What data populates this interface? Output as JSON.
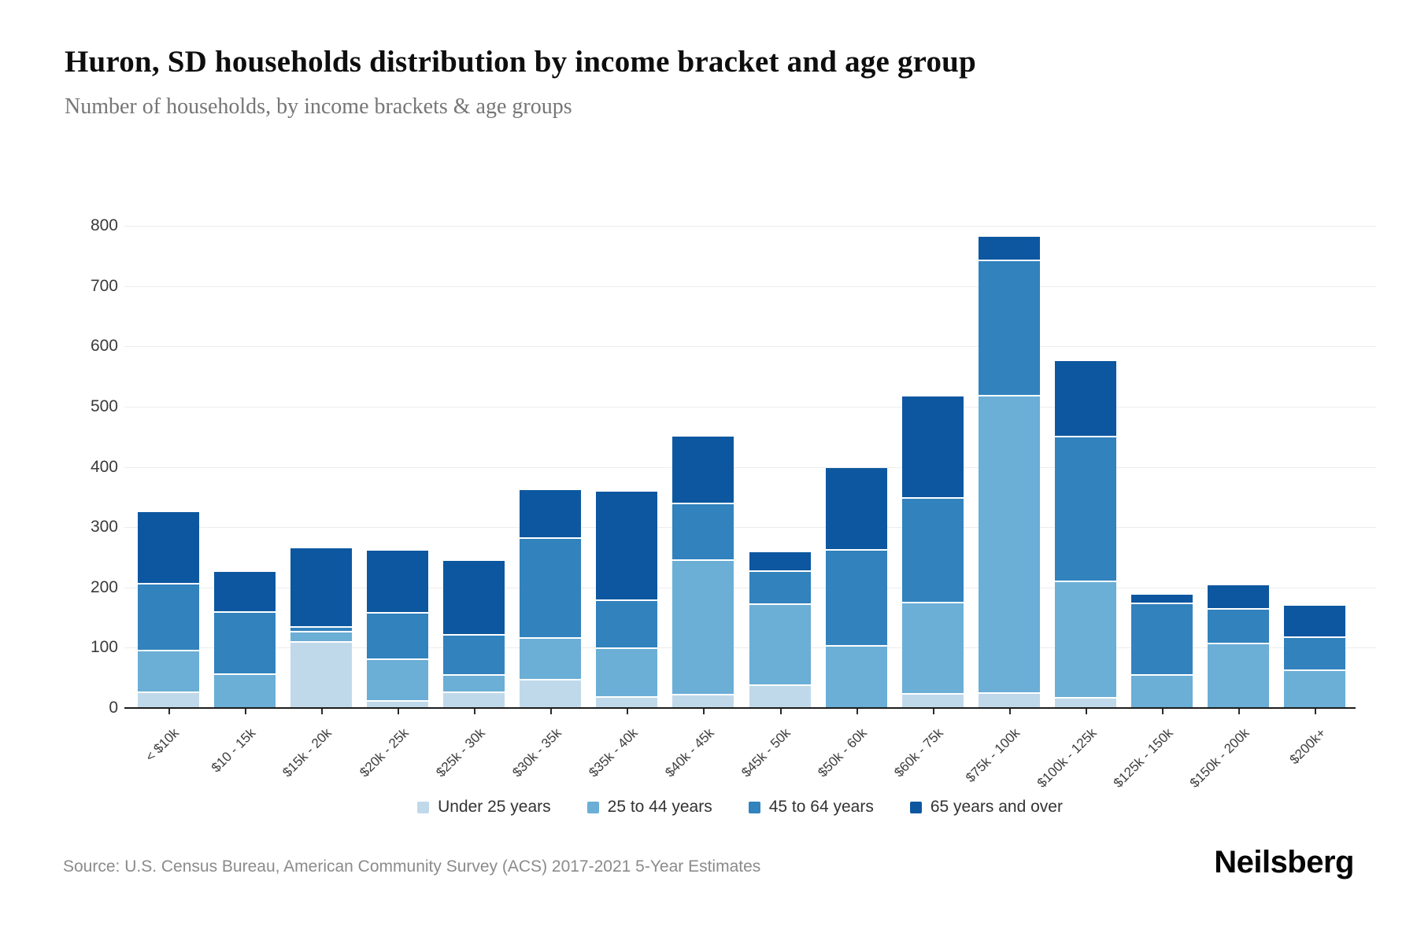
{
  "header": {
    "title": "Huron, SD households distribution by income bracket and age group",
    "subtitle": "Number of households, by income brackets & age groups"
  },
  "chart_data": {
    "type": "bar",
    "stacked": true,
    "grid": true,
    "legend_position": "bottom",
    "ylim": [
      0,
      800
    ],
    "ytick_interval": 100,
    "xlabel": "",
    "ylabel": "",
    "categories": [
      "< $10k",
      "$10 - 15k",
      "$15k - 20k",
      "$20k - 25k",
      "$25k - 30k",
      "$30k - 35k",
      "$35k - 40k",
      "$40k - 45k",
      "$45k - 50k",
      "$50k - 60k",
      "$60k - 75k",
      "$75k - 100k",
      "$100k - 125k",
      "$125k - 150k",
      "$150k - 200k",
      "$200k+"
    ],
    "series": [
      {
        "name": "Under 25 years",
        "color": "#c0d9ea",
        "values": [
          28,
          0,
          111,
          13,
          28,
          48,
          20,
          24,
          39,
          0,
          25,
          26,
          18,
          0,
          0,
          0
        ]
      },
      {
        "name": "25 to 44 years",
        "color": "#6baed6",
        "values": [
          68,
          57,
          17,
          69,
          28,
          70,
          80,
          222,
          135,
          104,
          151,
          493,
          193,
          56,
          108,
          64
        ]
      },
      {
        "name": "45 to 64 years",
        "color": "#3182bd",
        "values": [
          111,
          104,
          7,
          77,
          66,
          165,
          80,
          94,
          54,
          159,
          174,
          225,
          240,
          119,
          58,
          54
        ]
      },
      {
        "name": "65 years and over",
        "color": "#0d57a0",
        "values": [
          118,
          65,
          130,
          102,
          122,
          78,
          179,
          110,
          31,
          135,
          167,
          38,
          124,
          13,
          38,
          52
        ]
      }
    ],
    "totals": [
      325,
      226,
      265,
      261,
      244,
      361,
      359,
      450,
      259,
      398,
      517,
      782,
      575,
      188,
      204,
      170
    ]
  },
  "footer": {
    "source": "Source: U.S. Census Bureau, American Community Survey (ACS) 2017-2021 5-Year Estimates",
    "logo": "Neilsberg"
  }
}
